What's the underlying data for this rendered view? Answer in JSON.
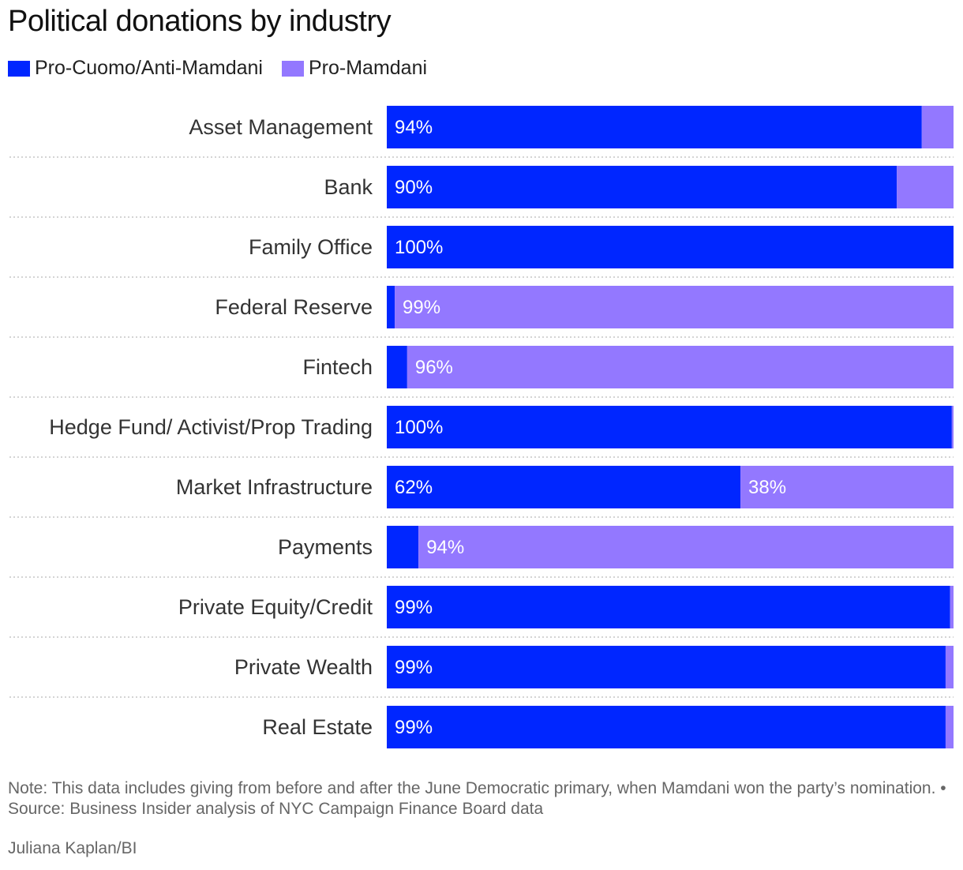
{
  "title": "Political donations by industry",
  "note": "Note: This data includes giving from before and after the June Democratic primary, when Mamdani won the party’s nomination. • Source: Business Insider analysis of NYC Campaign Finance Board data",
  "credit": "Juliana Kaplan/BI",
  "colors": {
    "pro_cuomo": "#0026ff",
    "pro_mamdani": "#9378ff",
    "divider": "#bbbbbb",
    "label": "#333333",
    "bar_text": "#ffffff"
  },
  "chart_data": {
    "type": "bar",
    "orientation": "horizontal",
    "stacked": true,
    "legend_position": "top-left",
    "xlim": [
      0,
      100
    ],
    "categories": [
      "Asset Management",
      "Bank",
      "Family Office",
      "Federal Reserve",
      "Fintech",
      "Hedge Fund/ Activist/Prop Trading",
      "Market Infrastructure",
      "Payments",
      "Private Equity/Credit",
      "Private Wealth",
      "Real Estate"
    ],
    "series": [
      {
        "name": "Pro-Cuomo/Anti-Mamdani",
        "values": [
          94.4,
          90,
          100,
          1.4,
          3.6,
          99.7,
          62.4,
          5.6,
          99.4,
          98.6,
          98.6
        ],
        "labels": [
          "94%",
          "90%",
          "100%",
          "",
          "",
          "100%",
          "62%",
          "",
          "99%",
          "99%",
          "99%"
        ]
      },
      {
        "name": "Pro-Mamdani",
        "values": [
          5.6,
          10,
          0,
          98.6,
          96.4,
          0.3,
          37.6,
          94.4,
          0.6,
          1.4,
          1.4
        ],
        "labels": [
          "",
          "",
          "",
          "99%",
          "96%",
          "",
          "38%",
          "94%",
          "",
          "",
          ""
        ]
      }
    ]
  }
}
